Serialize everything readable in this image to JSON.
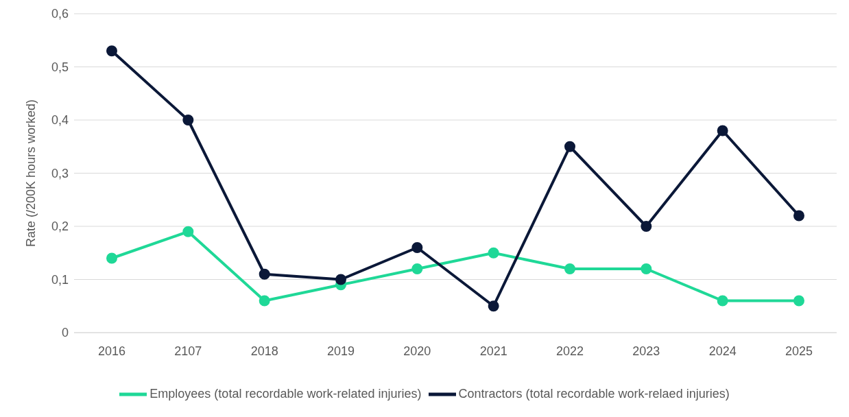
{
  "chart_data": {
    "type": "line",
    "ylabel": "Rate (/200K hours worked)",
    "categories": [
      "2016",
      "2107",
      "2018",
      "2019",
      "2020",
      "2021",
      "2022",
      "2023",
      "2024",
      "2025"
    ],
    "series": [
      {
        "name": "Employees (total recordable work-related injuries)",
        "color": "#1fd897",
        "values": [
          0.14,
          0.19,
          0.06,
          0.09,
          0.12,
          0.15,
          0.12,
          0.12,
          0.06,
          0.06
        ]
      },
      {
        "name": "Contractors (total recordable work-relaed injuries)",
        "color": "#0b1838",
        "values": [
          0.53,
          0.4,
          0.11,
          0.1,
          0.16,
          0.05,
          0.35,
          0.2,
          0.38,
          0.22
        ]
      }
    ],
    "ylim": [
      0,
      0.6
    ],
    "yticks": [
      0,
      {
        "value": 0.1,
        "label": "0,1"
      },
      {
        "value": 0.2,
        "label": "0,2"
      },
      {
        "value": 0.3,
        "label": "0,3"
      },
      {
        "value": 0.4,
        "label": "0,4"
      },
      {
        "value": 0.5,
        "label": "0,5"
      },
      {
        "value": 0.6,
        "label": "0,6"
      }
    ],
    "grid": "y",
    "legend": "bottom",
    "marker": "circle",
    "line_style": "solid"
  }
}
